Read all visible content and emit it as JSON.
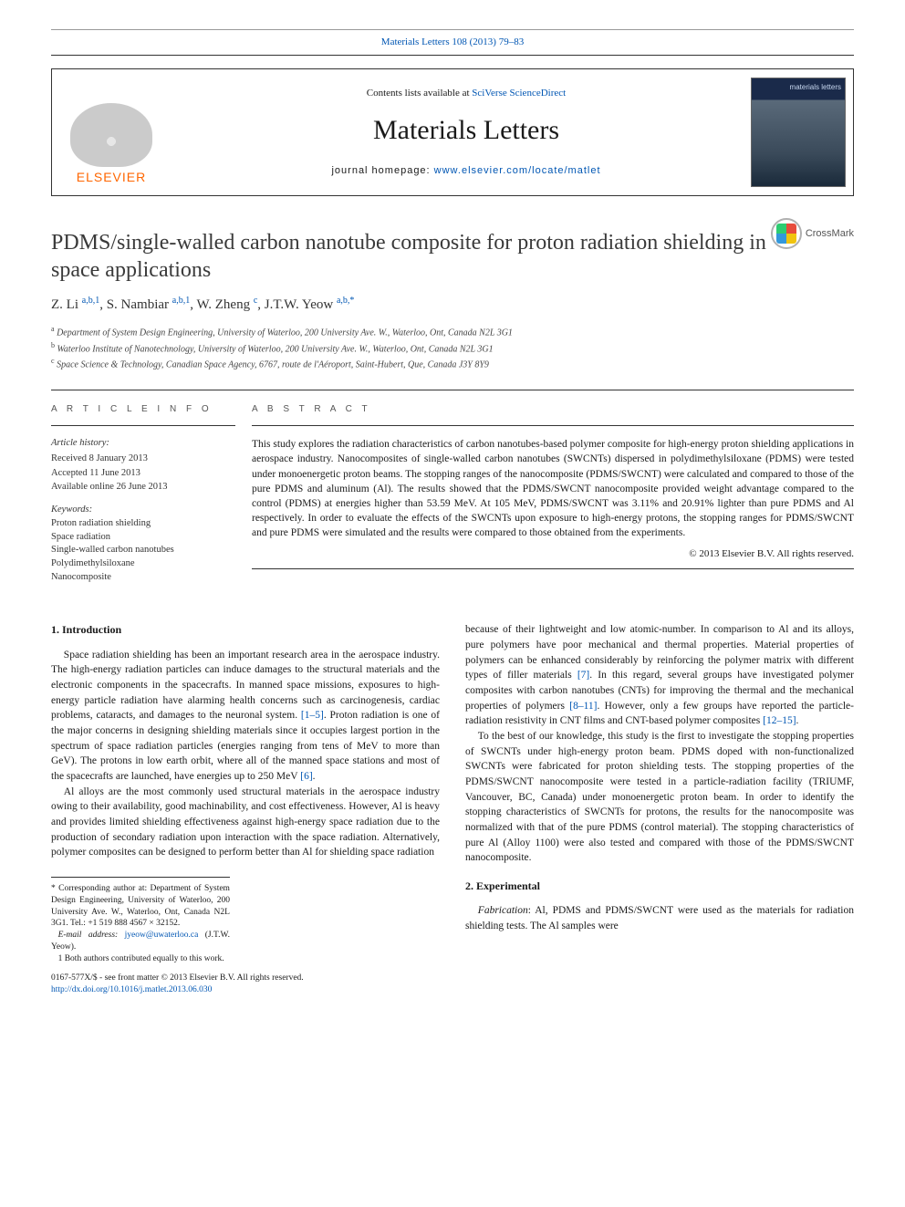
{
  "header": {
    "citation": "Materials Letters 108 (2013) 79–83"
  },
  "masthead": {
    "publisher": "ELSEVIER",
    "available_prefix": "Contents lists available at ",
    "available_link": "SciVerse ScienceDirect",
    "journal": "Materials Letters",
    "homepage_prefix": "journal homepage: ",
    "homepage_link": "www.elsevier.com/locate/matlet",
    "cover_label": "materials letters"
  },
  "crossmark": {
    "label": "CrossMark"
  },
  "title": "PDMS/single-walled carbon nanotube composite for proton radiation shielding in space applications",
  "authors_html": "Z. Li <sup>a,b,1</sup>, S. Nambiar <sup>a,b,1</sup>, W. Zheng <sup>c</sup>, J.T.W. Yeow <sup>a,b,*</sup>",
  "affiliations": [
    "a Department of System Design Engineering, University of Waterloo, 200 University Ave. W., Waterloo, Ont, Canada N2L 3G1",
    "b Waterloo Institute of Nanotechnology, University of Waterloo, 200 University Ave. W., Waterloo, Ont, Canada N2L 3G1",
    "c Space Science & Technology, Canadian Space Agency, 6767, route de l'Aéroport, Saint-Hubert, Que, Canada J3Y 8Y9"
  ],
  "info": {
    "heading": "A R T I C L E  I N F O",
    "history_label": "Article history:",
    "history": [
      "Received 8 January 2013",
      "Accepted 11 June 2013",
      "Available online 26 June 2013"
    ],
    "keywords_label": "Keywords:",
    "keywords": [
      "Proton radiation shielding",
      "Space radiation",
      "Single-walled carbon nanotubes",
      "Polydimethylsiloxane",
      "Nanocomposite"
    ]
  },
  "abstract": {
    "heading": "A B S T R A C T",
    "text": "This study explores the radiation characteristics of carbon nanotubes-based polymer composite for high-energy proton shielding applications in aerospace industry. Nanocomposites of single-walled carbon nanotubes (SWCNTs) dispersed in polydimethylsiloxane (PDMS) were tested under monoenergetic proton beams. The stopping ranges of the nanocomposite (PDMS/SWCNT) were calculated and compared to those of the pure PDMS and aluminum (Al). The results showed that the PDMS/SWCNT nanocomposite provided weight advantage compared to the control (PDMS) at energies higher than 53.59 MeV. At 105 MeV, PDMS/SWCNT was 3.11% and 20.91% lighter than pure PDMS and Al respectively. In order to evaluate the effects of the SWCNTs upon exposure to high-energy protons, the stopping ranges for PDMS/SWCNT and pure PDMS were simulated and the results were compared to those obtained from the experiments.",
    "copyright": "© 2013 Elsevier B.V. All rights reserved."
  },
  "body": {
    "section1_head": "1.  Introduction",
    "para1": "Space radiation shielding has been an important research area in the aerospace industry. The high-energy radiation particles can induce damages to the structural materials and the electronic components in the spacecrafts. In manned space missions, exposures to high-energy particle radiation have alarming health concerns such as carcinogenesis, cardiac problems, cataracts, and damages to the neuronal system. [1–5]. Proton radiation is one of the major concerns in designing shielding materials since it occupies largest portion in the spectrum of space radiation particles (energies ranging from tens of MeV to more than GeV). The protons in low earth orbit, where all of the manned space stations and most of the spacecrafts are launched, have energies up to 250 MeV [6].",
    "para2": "Al alloys are the most commonly used structural materials in the aerospace industry owing to their availability, good machinability, and cost effectiveness. However, Al is heavy and provides limited shielding effectiveness against high-energy space radiation due to the production of secondary radiation upon interaction with the space radiation. Alternatively, polymer composites can be designed to perform better than Al for shielding space radiation",
    "para3": "because of their lightweight and low atomic-number. In comparison to Al and its alloys, pure polymers have poor mechanical and thermal properties. Material properties of polymers can be enhanced considerably by reinforcing the polymer matrix with different types of filler materials [7]. In this regard, several groups have investigated polymer composites with carbon nanotubes (CNTs) for improving the thermal and the mechanical properties of polymers [8–11]. However, only a few groups have reported the particle-radiation resistivity in CNT films and CNT-based polymer composites [12–15].",
    "para4": "To the best of our knowledge, this study is the first to investigate the stopping properties of SWCNTs under high-energy proton beam. PDMS doped with non-functionalized SWCNTs were fabricated for proton shielding tests. The stopping properties of the PDMS/SWCNT nanocomposite were tested in a particle-radiation facility (TRIUMF, Vancouver, BC, Canada) under monoenergetic proton beam. In order to identify the stopping characteristics of SWCNTs for protons, the results for the nanocomposite was normalized with that of the pure PDMS (control material). The stopping characteristics of pure Al (Alloy 1100) were also tested and compared with those of the PDMS/SWCNT nanocomposite.",
    "section2_head": "2.  Experimental",
    "para5": "Fabrication: Al, PDMS and PDMS/SWCNT were used as the materials for radiation shielding tests. The Al samples were"
  },
  "footnotes": {
    "corr": "* Corresponding author at: Department of System Design Engineering, University of Waterloo, 200 University Ave. W., Waterloo, Ont, Canada N2L 3G1. Tel.: +1 519 888 4567 × 32152.",
    "email_label": "E-mail address: ",
    "email": "jyeow@uwaterloo.ca",
    "email_suffix": " (J.T.W. Yeow).",
    "equal": "1 Both authors contributed equally to this work."
  },
  "imprint": {
    "line1": "0167-577X/$ - see front matter © 2013 Elsevier B.V. All rights reserved.",
    "doi": "http://dx.doi.org/10.1016/j.matlet.2013.06.030"
  },
  "colors": {
    "link": "#0056b3",
    "publisher_orange": "#ff6600",
    "rule": "#333333"
  }
}
